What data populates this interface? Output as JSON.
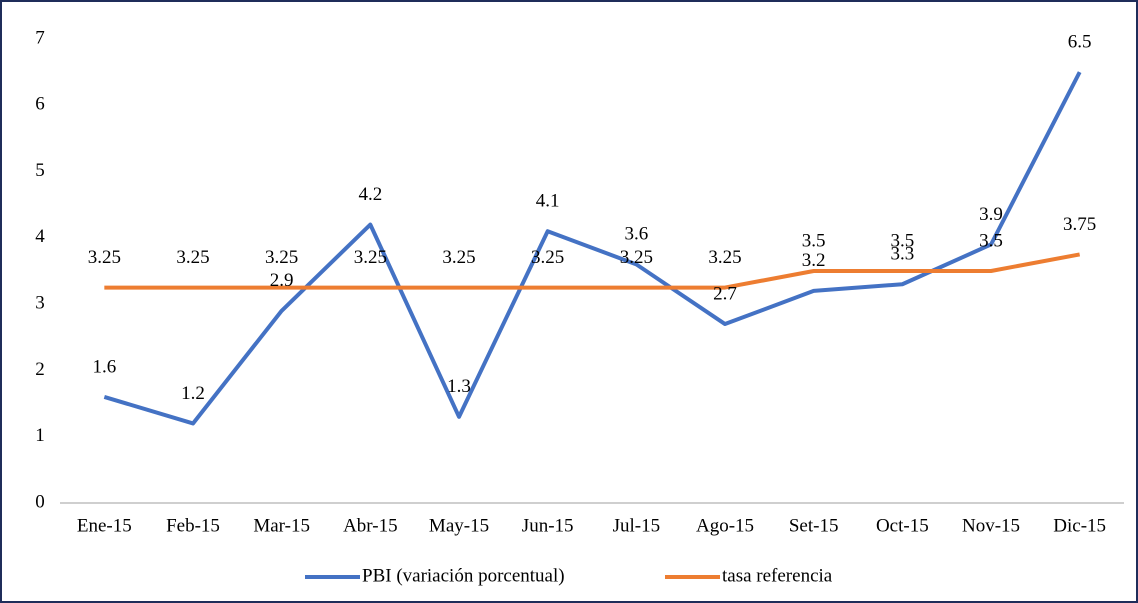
{
  "chart_data": {
    "type": "line",
    "categories": [
      "Ene-15",
      "Feb-15",
      "Mar-15",
      "Abr-15",
      "May-15",
      "Jun-15",
      "Jul-15",
      "Ago-15",
      "Set-15",
      "Oct-15",
      "Nov-15",
      "Dic-15"
    ],
    "series": [
      {
        "name": "PBI (variación porcentual)",
        "color": "#4472c4",
        "values": [
          1.6,
          1.2,
          2.9,
          4.2,
          1.3,
          4.1,
          3.6,
          2.7,
          3.2,
          3.3,
          3.9,
          6.5
        ]
      },
      {
        "name": "tasa referencia",
        "color": "#ed7d31",
        "values": [
          3.25,
          3.25,
          3.25,
          3.25,
          3.25,
          3.25,
          3.25,
          3.25,
          3.5,
          3.5,
          3.5,
          3.75
        ]
      }
    ],
    "ylim": [
      0,
      7
    ],
    "yticks": [
      0,
      1,
      2,
      3,
      4,
      5,
      6,
      7
    ],
    "grid": false,
    "legend": "bottom"
  }
}
